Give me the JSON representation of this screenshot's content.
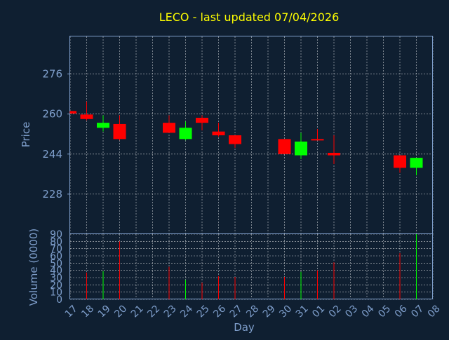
{
  "chart_data": {
    "type": "candlestick",
    "title": "LECO - last updated 07/04/2026",
    "price_panel": {
      "ylabel": "Price",
      "ylim": [
        212,
        291
      ],
      "yticks": [
        228,
        244,
        260,
        276
      ]
    },
    "volume_panel": {
      "ylabel": "Volume (0000)",
      "ylim": [
        0,
        90
      ],
      "yticks": [
        0,
        10,
        20,
        30,
        40,
        50,
        60,
        70,
        80,
        90
      ]
    },
    "xlabel": "Day",
    "x_ticks": [
      "17",
      "18",
      "19",
      "20",
      "21",
      "22",
      "23",
      "24",
      "25",
      "26",
      "27",
      "28",
      "29",
      "30",
      "31",
      "01",
      "02",
      "03",
      "04",
      "05",
      "06",
      "07",
      "08"
    ],
    "colors": {
      "up": "#00ff00",
      "down": "#ff0000",
      "background": "#0f1f31",
      "text": "#7f9fcc",
      "title": "#ffff00"
    },
    "candles": [
      {
        "day": "17",
        "open": 261.2,
        "high": 261.2,
        "low": 260.2,
        "close": 260.2,
        "volume": 0
      },
      {
        "day": "18",
        "open": 259.8,
        "high": 265.0,
        "low": 257.5,
        "close": 258.0,
        "volume": 37
      },
      {
        "day": "19",
        "open": 254.5,
        "high": 259.5,
        "low": 253.0,
        "close": 256.5,
        "volume": 39
      },
      {
        "day": "20",
        "open": 256.0,
        "high": 259.5,
        "low": 249.5,
        "close": 250.0,
        "volume": 80
      },
      {
        "day": "23",
        "open": 256.5,
        "high": 259.5,
        "low": 252.5,
        "close": 252.5,
        "volume": 45
      },
      {
        "day": "24",
        "open": 250.0,
        "high": 257.0,
        "low": 249.5,
        "close": 254.5,
        "volume": 27
      },
      {
        "day": "25",
        "open": 258.5,
        "high": 259.5,
        "low": 253.5,
        "close": 256.5,
        "volume": 23
      },
      {
        "day": "26",
        "open": 253.0,
        "high": 256.5,
        "low": 251.0,
        "close": 251.5,
        "volume": 32
      },
      {
        "day": "27",
        "open": 251.5,
        "high": 251.5,
        "low": 246.5,
        "close": 248.0,
        "volume": 31
      },
      {
        "day": "30",
        "open": 250.0,
        "high": 250.0,
        "low": 244.0,
        "close": 244.0,
        "volume": 31
      },
      {
        "day": "31",
        "open": 243.5,
        "high": 252.5,
        "low": 242.0,
        "close": 249.0,
        "volume": 38
      },
      {
        "day": "01",
        "open": 250.0,
        "high": 254.0,
        "low": 249.5,
        "close": 249.5,
        "volume": 40
      },
      {
        "day": "02",
        "open": 244.5,
        "high": 251.5,
        "low": 240.0,
        "close": 243.5,
        "volume": 51
      },
      {
        "day": "06",
        "open": 243.5,
        "high": 243.5,
        "low": 236.5,
        "close": 238.5,
        "volume": 64
      },
      {
        "day": "07",
        "open": 238.5,
        "high": 242.5,
        "low": 235.5,
        "close": 242.5,
        "volume": 90
      }
    ]
  }
}
